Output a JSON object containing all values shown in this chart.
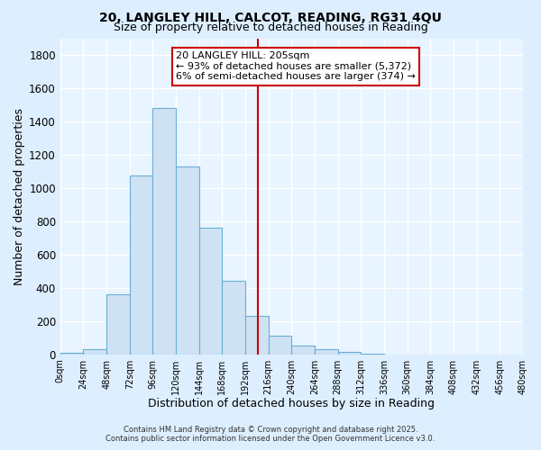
{
  "title": "20, LANGLEY HILL, CALCOT, READING, RG31 4QU",
  "subtitle": "Size of property relative to detached houses in Reading",
  "xlabel": "Distribution of detached houses by size in Reading",
  "ylabel": "Number of detached properties",
  "bar_color": "#cfe2f3",
  "bar_edge_color": "#6aaed6",
  "background_color": "#ddeeff",
  "plot_bg_color": "#e8f4ff",
  "grid_color": "#ffffff",
  "bin_edges": [
    0,
    24,
    48,
    72,
    96,
    120,
    144,
    168,
    192,
    216,
    240,
    264,
    288,
    312,
    336,
    360,
    384,
    408,
    432,
    456,
    480
  ],
  "bin_counts": [
    10,
    30,
    360,
    1075,
    1480,
    1130,
    760,
    440,
    230,
    110,
    55,
    30,
    15,
    5,
    0,
    0,
    0,
    0,
    0,
    0
  ],
  "vline_x": 205,
  "vline_color": "#cc0000",
  "annotation_line1": "20 LANGLEY HILL: 205sqm",
  "annotation_line2": "← 93% of detached houses are smaller (5,372)",
  "annotation_line3": "6% of semi-detached houses are larger (374) →",
  "annotation_box_color": "#ffffff",
  "annotation_box_edge": "#cc0000",
  "ylim": [
    0,
    1900
  ],
  "yticks": [
    0,
    200,
    400,
    600,
    800,
    1000,
    1200,
    1400,
    1600,
    1800
  ],
  "tick_labels": [
    "0sqm",
    "24sqm",
    "48sqm",
    "72sqm",
    "96sqm",
    "120sqm",
    "144sqm",
    "168sqm",
    "192sqm",
    "216sqm",
    "240sqm",
    "264sqm",
    "288sqm",
    "312sqm",
    "336sqm",
    "360sqm",
    "384sqm",
    "408sqm",
    "432sqm",
    "456sqm",
    "480sqm"
  ],
  "footer_line1": "Contains HM Land Registry data © Crown copyright and database right 2025.",
  "footer_line2": "Contains public sector information licensed under the Open Government Licence v3.0."
}
